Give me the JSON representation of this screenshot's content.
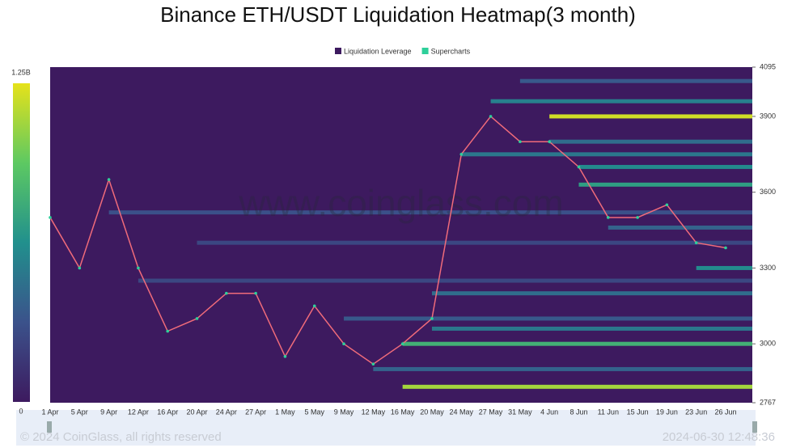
{
  "chart_data": {
    "type": "heatmap",
    "title": "Binance ETH/USDT Liquidation Heatmap(3 month)",
    "watermark": "www.coinglass.com",
    "footer_left": "© 2024 CoinGlass, all rights reserved",
    "footer_right": "2024-06-30 12:48:36",
    "background_color": "#3d1a5f",
    "series": [
      {
        "name": "Liquidation Leverage",
        "color": "#3d1a5f"
      },
      {
        "name": "Supercharts",
        "color": "#2ecf9a",
        "values": [
          3500,
          3300,
          3650,
          3300,
          3050,
          3100,
          3200,
          3200,
          2950,
          3150,
          3000,
          2920,
          3000,
          3100,
          3750,
          3900,
          3800,
          3800,
          3700,
          3500,
          3500,
          3550,
          3400,
          3380
        ]
      }
    ],
    "categories": [
      "1 Apr",
      "5 Apr",
      "9 Apr",
      "12 Apr",
      "16 Apr",
      "20 Apr",
      "24 Apr",
      "27 Apr",
      "1 May",
      "5 May",
      "9 May",
      "12 May",
      "16 May",
      "20 May",
      "24 May",
      "27 May",
      "31 May",
      "4 Jun",
      "8 Jun",
      "11 Jun",
      "15 Jun",
      "19 Jun",
      "23 Jun",
      "26 Jun"
    ],
    "ylim": [
      2767,
      4095
    ],
    "yticks": [
      2767,
      3000,
      3300,
      3600,
      3900,
      4095
    ],
    "clim": [
      0,
      1250000000
    ],
    "cticks": [
      {
        "value": 0,
        "label": "0"
      },
      {
        "value": 1250000000,
        "label": "1.25B"
      }
    ],
    "levels": [
      {
        "price": 3900,
        "from": 17,
        "value": 1200000000
      },
      {
        "price": 2830,
        "from": 12,
        "value": 1100000000
      },
      {
        "price": 3000,
        "from": 12,
        "value": 800000000
      },
      {
        "price": 3630,
        "from": 18,
        "value": 700000000
      },
      {
        "price": 3700,
        "from": 18,
        "value": 600000000
      },
      {
        "price": 3960,
        "from": 15,
        "value": 550000000
      },
      {
        "price": 3300,
        "from": 22,
        "value": 600000000
      },
      {
        "price": 3200,
        "from": 13,
        "value": 450000000
      },
      {
        "price": 3750,
        "from": 14,
        "value": 500000000
      },
      {
        "price": 3060,
        "from": 13,
        "value": 500000000
      },
      {
        "price": 3520,
        "from": 2,
        "value": 300000000
      },
      {
        "price": 3800,
        "from": 17,
        "value": 450000000
      },
      {
        "price": 3100,
        "from": 10,
        "value": 350000000
      },
      {
        "price": 3400,
        "from": 5,
        "value": 250000000
      },
      {
        "price": 3460,
        "from": 19,
        "value": 400000000
      },
      {
        "price": 4040,
        "from": 16,
        "value": 350000000
      },
      {
        "price": 2900,
        "from": 11,
        "value": 400000000
      },
      {
        "price": 3250,
        "from": 3,
        "value": 250000000
      }
    ]
  }
}
